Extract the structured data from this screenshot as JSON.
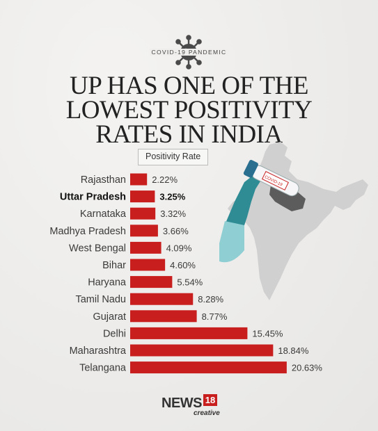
{
  "header": {
    "tagline": "COVID-19 PANDEMIC",
    "title_lines": [
      "UP HAS ONE OF THE",
      "LOWEST POSITIVITY",
      "RATES IN INDIA"
    ]
  },
  "legend": {
    "label": "Positivity Rate"
  },
  "branding": {
    "brand": "NEWS",
    "number": "18",
    "sub": "creative"
  },
  "illustration": {
    "kit_text": "COVID-19"
  },
  "colors": {
    "bar": "#c81e1e",
    "highlight_state": "#5c5c5c",
    "map": "#d0d0d0",
    "glove": "#2f8c95"
  },
  "chart_data": {
    "type": "bar",
    "orientation": "horizontal",
    "title": "UP HAS ONE OF THE LOWEST POSITIVITY RATES IN INDIA",
    "legend": "Positivity Rate",
    "categories": [
      "Rajasthan",
      "Uttar Pradesh",
      "Karnataka",
      "Madhya Pradesh",
      "West Bengal",
      "Bihar",
      "Haryana",
      "Tamil Nadu",
      "Gujarat",
      "Delhi",
      "Maharashtra",
      "Telangana"
    ],
    "values": [
      2.22,
      3.25,
      3.32,
      3.66,
      4.09,
      4.6,
      5.54,
      8.28,
      8.77,
      15.45,
      18.84,
      20.63
    ],
    "value_labels": [
      "2.22%",
      "3.25%",
      "3.32%",
      "3.66%",
      "4.09%",
      "4.60%",
      "5.54%",
      "8.28%",
      "8.77%",
      "15.45%",
      "18.84%",
      "20.63%"
    ],
    "highlight": "Uttar Pradesh",
    "xlim": [
      0,
      21
    ]
  }
}
